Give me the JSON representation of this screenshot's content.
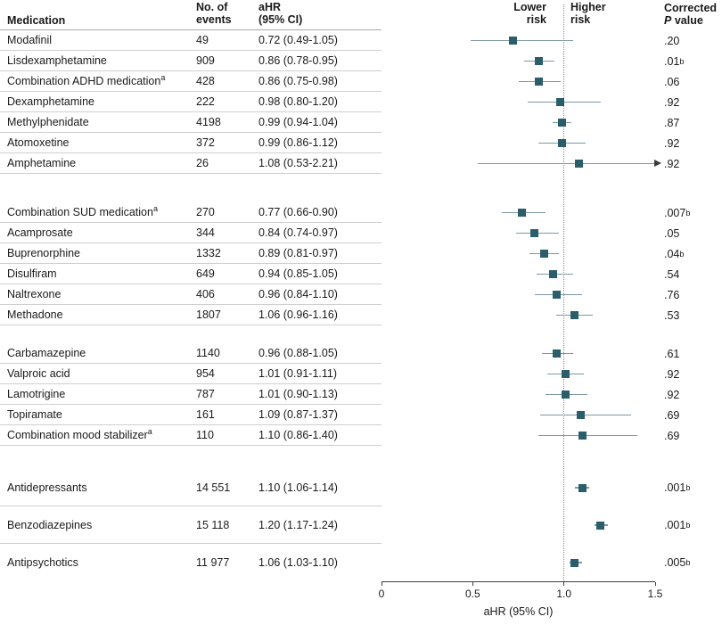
{
  "colors": {
    "marker": "#2b5d6b",
    "ci_line": "#7d98a2",
    "separator": "#cfcfcf",
    "header_rule": "#a8a8a8",
    "reference": "#8a8a8a",
    "arrow": "#3a3a3a"
  },
  "header": {
    "medication": "Medication",
    "events_line1": "No. of",
    "events_line2": "events",
    "ahr_line1": "aHR",
    "ahr_line2": "(95% CI)",
    "lower_line1": "Lower",
    "lower_line2": "risk",
    "higher_line1": "Higher",
    "higher_line2": "risk",
    "p_line1": "Corrected",
    "p_italic": "P",
    "p_rest": " value"
  },
  "chart_data": {
    "type": "scatter",
    "subtype": "forest-plot",
    "xlabel": "aHR (95% CI)",
    "xlim": [
      0,
      1.5
    ],
    "x_ticks": [
      0,
      0.5,
      1.0,
      1.5
    ],
    "x_tick_labels": [
      "0",
      "0.5",
      "1.0",
      "1.5"
    ],
    "reference_line": 1.0,
    "groups": [
      {
        "size": "regular",
        "rows": [
          {
            "medication": "Modafinil",
            "sup": "",
            "events": "49",
            "ahr_text": "0.72 (0.49-1.05)",
            "est": 0.72,
            "lo": 0.49,
            "hi": 1.05,
            "p": ".20",
            "p_sup": "",
            "arrow": false
          },
          {
            "medication": "Lisdexamphetamine",
            "sup": "",
            "events": "909",
            "ahr_text": "0.86 (0.78-0.95)",
            "est": 0.86,
            "lo": 0.78,
            "hi": 0.95,
            "p": ".01",
            "p_sup": "b",
            "arrow": false
          },
          {
            "medication": "Combination ADHD medication",
            "sup": "a",
            "events": "428",
            "ahr_text": "0.86 (0.75-0.98)",
            "est": 0.86,
            "lo": 0.75,
            "hi": 0.98,
            "p": ".06",
            "p_sup": "",
            "arrow": false
          },
          {
            "medication": "Dexamphetamine",
            "sup": "",
            "events": "222",
            "ahr_text": "0.98 (0.80-1.20)",
            "est": 0.98,
            "lo": 0.8,
            "hi": 1.2,
            "p": ".92",
            "p_sup": "",
            "arrow": false
          },
          {
            "medication": "Methylphenidate",
            "sup": "",
            "events": "4198",
            "ahr_text": "0.99 (0.94-1.04)",
            "est": 0.99,
            "lo": 0.94,
            "hi": 1.04,
            "p": ".87",
            "p_sup": "",
            "arrow": false
          },
          {
            "medication": "Atomoxetine",
            "sup": "",
            "events": "372",
            "ahr_text": "0.99 (0.86-1.12)",
            "est": 0.99,
            "lo": 0.86,
            "hi": 1.12,
            "p": ".92",
            "p_sup": "",
            "arrow": false
          },
          {
            "medication": "Amphetamine",
            "sup": "",
            "events": "26",
            "ahr_text": "1.08 (0.53-2.21)",
            "est": 1.08,
            "lo": 0.53,
            "hi": 2.21,
            "p": ".92",
            "p_sup": "",
            "arrow": true
          }
        ]
      },
      {
        "size": "regular",
        "rows": [
          {
            "medication": "Combination SUD medication",
            "sup": "a",
            "events": "270",
            "ahr_text": "0.77 (0.66-0.90)",
            "est": 0.77,
            "lo": 0.66,
            "hi": 0.9,
            "p": ".007",
            "p_sup": "b",
            "arrow": false
          },
          {
            "medication": "Acamprosate",
            "sup": "",
            "events": "344",
            "ahr_text": "0.84 (0.74-0.97)",
            "est": 0.84,
            "lo": 0.74,
            "hi": 0.97,
            "p": ".05",
            "p_sup": "",
            "arrow": false
          },
          {
            "medication": "Buprenorphine",
            "sup": "",
            "events": "1332",
            "ahr_text": "0.89 (0.81-0.97)",
            "est": 0.89,
            "lo": 0.81,
            "hi": 0.97,
            "p": ".04",
            "p_sup": "b",
            "arrow": false
          },
          {
            "medication": "Disulfiram",
            "sup": "",
            "events": "649",
            "ahr_text": "0.94 (0.85-1.05)",
            "est": 0.94,
            "lo": 0.85,
            "hi": 1.05,
            "p": ".54",
            "p_sup": "",
            "arrow": false
          },
          {
            "medication": "Naltrexone",
            "sup": "",
            "events": "406",
            "ahr_text": "0.96 (0.84-1.10)",
            "est": 0.96,
            "lo": 0.84,
            "hi": 1.1,
            "p": ".76",
            "p_sup": "",
            "arrow": false
          },
          {
            "medication": "Methadone",
            "sup": "",
            "events": "1807",
            "ahr_text": "1.06 (0.96-1.16)",
            "est": 1.06,
            "lo": 0.96,
            "hi": 1.16,
            "p": ".53",
            "p_sup": "",
            "arrow": false
          }
        ]
      },
      {
        "size": "regular",
        "rows": [
          {
            "medication": "Carbamazepine",
            "sup": "",
            "events": "1140",
            "ahr_text": "0.96 (0.88-1.05)",
            "est": 0.96,
            "lo": 0.88,
            "hi": 1.05,
            "p": ".61",
            "p_sup": "",
            "arrow": false
          },
          {
            "medication": "Valproic acid",
            "sup": "",
            "events": "954",
            "ahr_text": "1.01 (0.91-1.11)",
            "est": 1.01,
            "lo": 0.91,
            "hi": 1.11,
            "p": ".92",
            "p_sup": "",
            "arrow": false
          },
          {
            "medication": "Lamotrigine",
            "sup": "",
            "events": "787",
            "ahr_text": "1.01 (0.90-1.13)",
            "est": 1.01,
            "lo": 0.9,
            "hi": 1.13,
            "p": ".92",
            "p_sup": "",
            "arrow": false
          },
          {
            "medication": "Topiramate",
            "sup": "",
            "events": "161",
            "ahr_text": "1.09 (0.87-1.37)",
            "est": 1.09,
            "lo": 0.87,
            "hi": 1.37,
            "p": ".69",
            "p_sup": "",
            "arrow": false
          },
          {
            "medication": "Combination mood stabilizer",
            "sup": "a",
            "events": "110",
            "ahr_text": "1.10 (0.86-1.40)",
            "est": 1.1,
            "lo": 0.86,
            "hi": 1.4,
            "p": ".69",
            "p_sup": "",
            "arrow": false
          }
        ]
      },
      {
        "size": "large",
        "rows": [
          {
            "medication": "Antidepressants",
            "sup": "",
            "events": "14 551",
            "ahr_text": "1.10 (1.06-1.14)",
            "est": 1.1,
            "lo": 1.06,
            "hi": 1.14,
            "p": ".001",
            "p_sup": "b",
            "arrow": false
          },
          {
            "medication": "Benzodiazepines",
            "sup": "",
            "events": "15 118",
            "ahr_text": "1.20 (1.17-1.24)",
            "est": 1.2,
            "lo": 1.17,
            "hi": 1.24,
            "p": ".001",
            "p_sup": "b",
            "arrow": false
          },
          {
            "medication": "Antipsychotics",
            "sup": "",
            "events": "11 977",
            "ahr_text": "1.06 (1.03-1.10)",
            "est": 1.06,
            "lo": 1.03,
            "hi": 1.1,
            "p": ".005",
            "p_sup": "b",
            "arrow": false
          }
        ]
      }
    ]
  }
}
